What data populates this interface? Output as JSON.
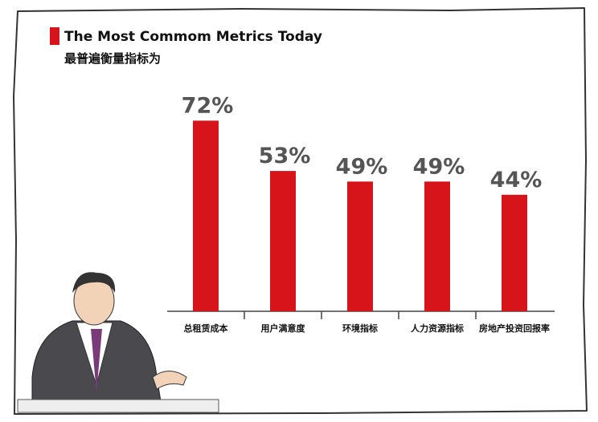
{
  "chart_data": {
    "type": "bar",
    "title": "The Most Commom Metrics Today",
    "subtitle": "最普遍衡量指标为",
    "categories": [
      "总租赁成本",
      "用户满意度",
      "环境指标",
      "人力资源指标",
      "房地产投资回报率"
    ],
    "values": [
      72,
      53,
      49,
      49,
      44
    ],
    "value_labels": [
      "72%",
      "53%",
      "49%",
      "49%",
      "44%"
    ],
    "color": "#d7141a"
  }
}
